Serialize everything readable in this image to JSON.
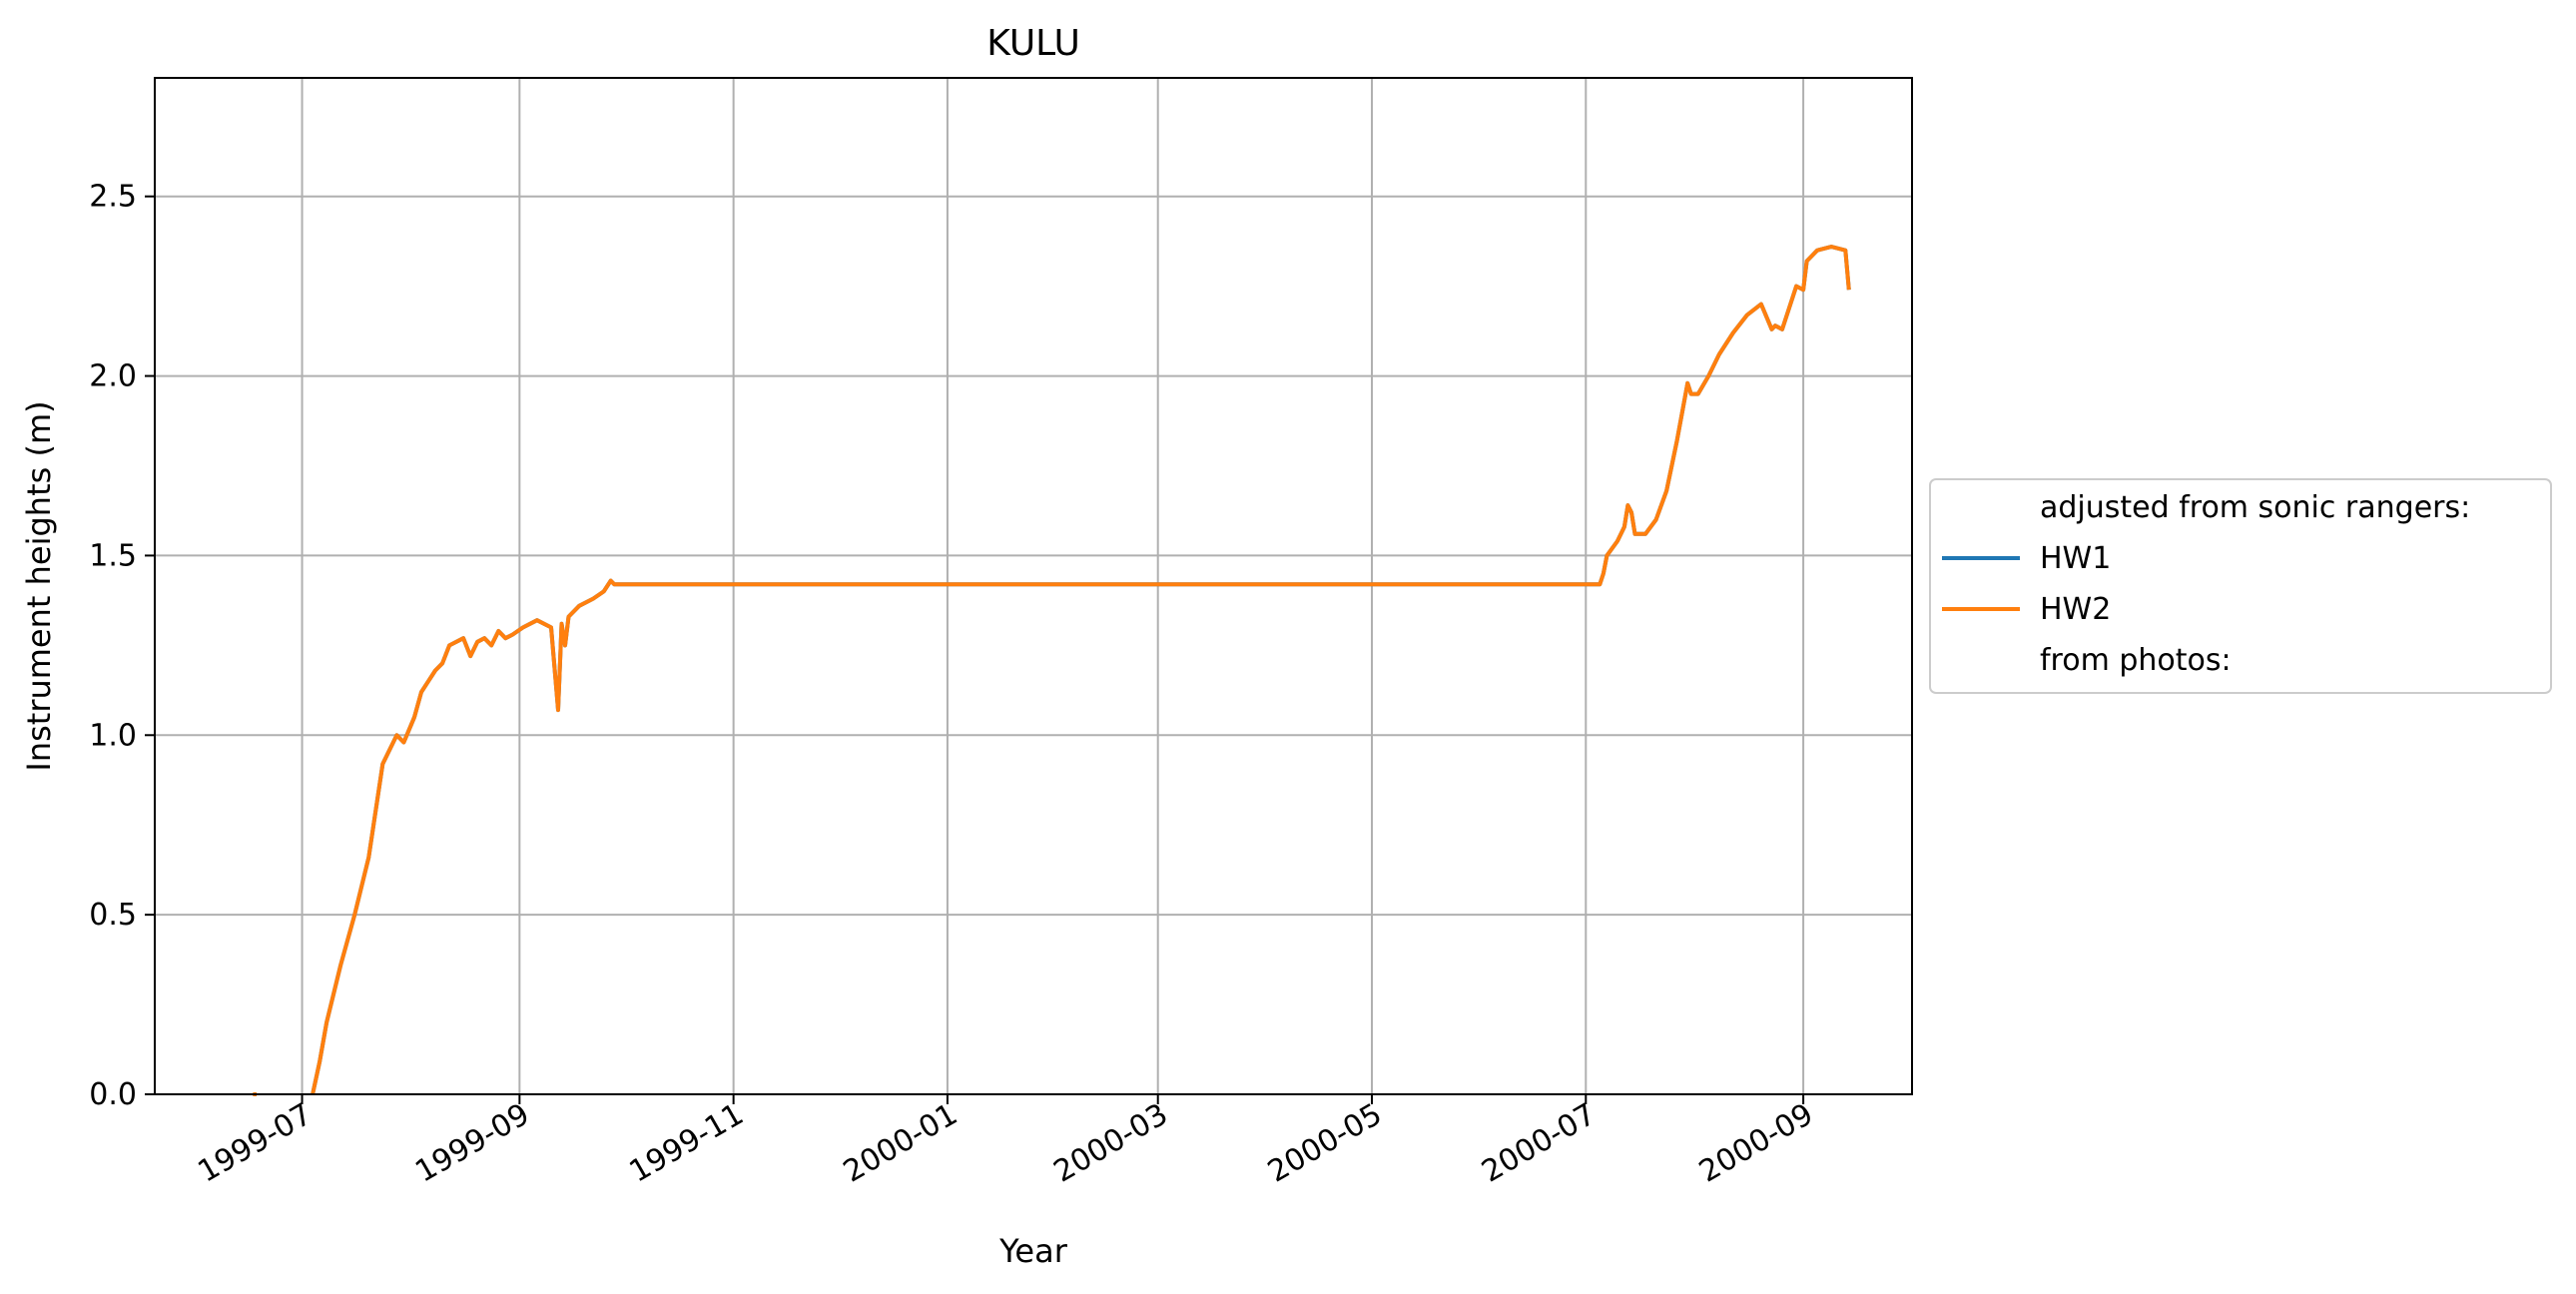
{
  "chart_data": {
    "type": "line",
    "title": "KULU",
    "xlabel": "Year",
    "ylabel": "Instrument heights (m)",
    "x_type": "date",
    "xlim": [
      "1999-05-20",
      "2000-10-02"
    ],
    "ylim": [
      0,
      2.83
    ],
    "x_ticks": [
      "1999-07",
      "1999-09",
      "1999-11",
      "2000-01",
      "2000-03",
      "2000-05",
      "2000-07",
      "2000-09"
    ],
    "x_tick_values": [
      "1999-07-01",
      "1999-09-01",
      "1999-11-01",
      "2000-01-01",
      "2000-03-01",
      "2000-05-01",
      "2000-07-01",
      "2000-09-01"
    ],
    "y_ticks": [
      0.0,
      0.5,
      1.0,
      1.5,
      2.0,
      2.5
    ],
    "y_tick_labels": [
      "0.0",
      "0.5",
      "1.0",
      "1.5",
      "2.0",
      "2.5"
    ],
    "grid": true,
    "legend": {
      "placement": "right-outside",
      "entries": [
        {
          "label": "adjusted from sonic rangers:",
          "color": null
        },
        {
          "label": "HW1",
          "color": "#1f77b4"
        },
        {
          "label": "HW2",
          "color": "#ff7f0e"
        },
        {
          "label": "from photos:",
          "color": null
        }
      ]
    },
    "series": [
      {
        "name": "HW1",
        "color": "#1f77b4",
        "x": [
          "1999-06-17",
          "1999-06-18",
          "1999-07-04",
          "1999-07-06",
          "1999-07-08",
          "1999-07-12",
          "1999-07-16",
          "1999-07-20",
          "1999-07-24",
          "1999-07-28",
          "1999-07-30",
          "1999-08-02",
          "1999-08-04",
          "1999-08-06",
          "1999-08-08",
          "1999-08-10",
          "1999-08-12",
          "1999-08-16",
          "1999-08-18",
          "1999-08-20",
          "1999-08-22",
          "1999-08-24",
          "1999-08-26",
          "1999-08-28",
          "1999-08-30",
          "1999-09-02",
          "1999-09-06",
          "1999-09-10",
          "1999-09-12",
          "1999-09-13",
          "1999-09-14",
          "1999-09-15",
          "1999-09-18",
          "1999-09-22",
          "1999-09-25",
          "1999-09-27",
          "1999-09-28",
          "2000-07-05",
          "2000-07-06",
          "2000-07-07",
          "2000-07-10",
          "2000-07-12",
          "2000-07-13",
          "2000-07-14",
          "2000-07-15",
          "2000-07-18",
          "2000-07-21",
          "2000-07-24",
          "2000-07-27",
          "2000-07-30",
          "2000-07-31",
          "2000-08-02",
          "2000-08-05",
          "2000-08-08",
          "2000-08-12",
          "2000-08-16",
          "2000-08-20",
          "2000-08-23",
          "2000-08-24",
          "2000-08-26",
          "2000-08-29",
          "2000-08-30",
          "2000-09-01",
          "2000-09-02",
          "2000-09-05",
          "2000-09-09",
          "2000-09-13",
          "2000-09-14",
          "2000-09-14"
        ],
        "y": [
          0.0,
          0.0,
          0.0,
          0.09,
          0.2,
          0.36,
          0.5,
          0.66,
          0.92,
          1.0,
          0.98,
          1.05,
          1.12,
          1.15,
          1.18,
          1.2,
          1.25,
          1.27,
          1.22,
          1.26,
          1.27,
          1.25,
          1.29,
          1.27,
          1.28,
          1.3,
          1.32,
          1.3,
          1.07,
          1.31,
          1.25,
          1.33,
          1.36,
          1.38,
          1.4,
          1.43,
          1.42,
          1.42,
          1.45,
          1.5,
          1.54,
          1.58,
          1.64,
          1.62,
          1.56,
          1.56,
          1.6,
          1.68,
          1.82,
          1.98,
          1.95,
          1.95,
          2.0,
          2.06,
          2.12,
          2.17,
          2.2,
          2.13,
          2.14,
          2.13,
          2.22,
          2.25,
          2.24,
          2.32,
          2.35,
          2.36,
          2.35,
          2.24,
          2.24
        ]
      },
      {
        "name": "HW2",
        "color": "#ff7f0e",
        "x": [
          "1999-06-17",
          "1999-06-18",
          "1999-07-04",
          "1999-07-06",
          "1999-07-08",
          "1999-07-12",
          "1999-07-16",
          "1999-07-20",
          "1999-07-24",
          "1999-07-28",
          "1999-07-30",
          "1999-08-02",
          "1999-08-04",
          "1999-08-06",
          "1999-08-08",
          "1999-08-10",
          "1999-08-12",
          "1999-08-16",
          "1999-08-18",
          "1999-08-20",
          "1999-08-22",
          "1999-08-24",
          "1999-08-26",
          "1999-08-28",
          "1999-08-30",
          "1999-09-02",
          "1999-09-06",
          "1999-09-10",
          "1999-09-12",
          "1999-09-13",
          "1999-09-14",
          "1999-09-15",
          "1999-09-18",
          "1999-09-22",
          "1999-09-25",
          "1999-09-27",
          "1999-09-28",
          "2000-07-05",
          "2000-07-06",
          "2000-07-07",
          "2000-07-10",
          "2000-07-12",
          "2000-07-13",
          "2000-07-14",
          "2000-07-15",
          "2000-07-18",
          "2000-07-21",
          "2000-07-24",
          "2000-07-27",
          "2000-07-30",
          "2000-07-31",
          "2000-08-02",
          "2000-08-05",
          "2000-08-08",
          "2000-08-12",
          "2000-08-16",
          "2000-08-20",
          "2000-08-23",
          "2000-08-24",
          "2000-08-26",
          "2000-08-29",
          "2000-08-30",
          "2000-09-01",
          "2000-09-02",
          "2000-09-05",
          "2000-09-09",
          "2000-09-13",
          "2000-09-14",
          "2000-09-14"
        ],
        "y": [
          0.0,
          0.0,
          0.0,
          0.09,
          0.2,
          0.36,
          0.5,
          0.66,
          0.92,
          1.0,
          0.98,
          1.05,
          1.12,
          1.15,
          1.18,
          1.2,
          1.25,
          1.27,
          1.22,
          1.26,
          1.27,
          1.25,
          1.29,
          1.27,
          1.28,
          1.3,
          1.32,
          1.3,
          1.07,
          1.31,
          1.25,
          1.33,
          1.36,
          1.38,
          1.4,
          1.43,
          1.42,
          1.42,
          1.45,
          1.5,
          1.54,
          1.58,
          1.64,
          1.62,
          1.56,
          1.56,
          1.6,
          1.68,
          1.82,
          1.98,
          1.95,
          1.95,
          2.0,
          2.06,
          2.12,
          2.17,
          2.2,
          2.13,
          2.14,
          2.13,
          2.22,
          2.25,
          2.24,
          2.32,
          2.35,
          2.36,
          2.35,
          2.24,
          2.24
        ]
      }
    ],
    "gap": {
      "after": "1999-06-18",
      "before": "1999-07-04"
    }
  }
}
